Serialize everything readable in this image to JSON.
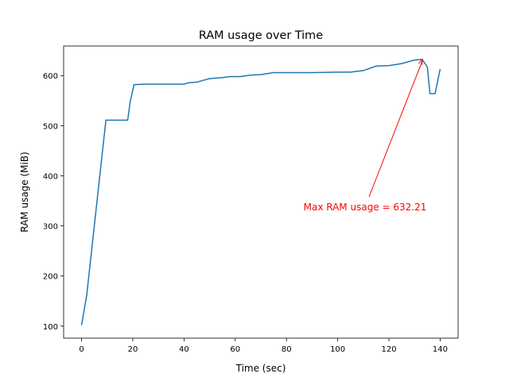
{
  "chart_data": {
    "type": "line",
    "title": "RAM usage over Time",
    "x_label": "Time (sec)",
    "y_label": "RAM usage (MiB)",
    "annotation": "Max RAM usage = 632.21",
    "series": [
      {
        "name": "RAM usage",
        "color": "#1f77b4",
        "x": [
          0,
          2,
          9.5,
          18,
          19,
          20.5,
          25,
          30,
          40,
          42,
          45,
          50,
          55,
          58,
          62,
          66,
          70,
          75,
          80,
          90,
          100,
          105,
          110,
          115,
          120,
          125,
          130,
          133,
          135,
          136,
          138,
          140
        ],
        "values": [
          102,
          161,
          511,
          511,
          548,
          582,
          583,
          583,
          583,
          586,
          587,
          594,
          596,
          598,
          598,
          601,
          602,
          606,
          606,
          606,
          607,
          607,
          610,
          619,
          620,
          624,
          631,
          632.21,
          617,
          564,
          564,
          613
        ]
      }
    ],
    "xlim": [
      -7,
      147
    ],
    "xticks": [
      0,
      20,
      40,
      60,
      80,
      100,
      120,
      140
    ],
    "ylim": [
      76,
      659
    ],
    "yticks": [
      100,
      200,
      300,
      400,
      500,
      600
    ],
    "annotation_color": "#ff0000",
    "grid": false
  }
}
